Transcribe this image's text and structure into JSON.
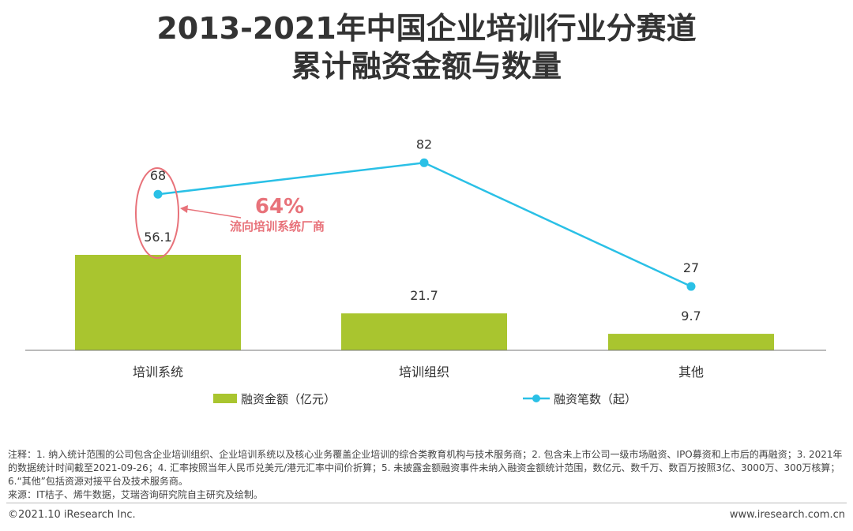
{
  "header": {
    "title_line1": "2013-2021年中国企业培训行业分赛道",
    "title_line2": "累计融资金额与数量"
  },
  "chart_data": {
    "type": "bar+line",
    "categories": [
      "培训系统",
      "培训组织",
      "其他"
    ],
    "series": [
      {
        "name": "融资金额（亿元）",
        "type": "bar",
        "values": [
          56.1,
          21.7,
          9.7
        ],
        "color": "#a9c52f"
      },
      {
        "name": "融资笔数（起）",
        "type": "line",
        "values": [
          68,
          82,
          27
        ],
        "color": "#2ac0e6"
      }
    ],
    "annotation": {
      "value": "64%",
      "text": "流向培训系统厂商",
      "color": "#e8727a",
      "target_category": "培训系统"
    },
    "legend_position": "bottom"
  },
  "notes": {
    "line1": "注释：1. 纳入统计范围的公司包含企业培训组织、企业培训系统以及核心业务覆盖企业培训的综合类教育机构与技术服务商；2. 包含未上市公司一级市场融资、IPO募资和上市后的再融资；3. 2021年的数据统计时间截至2021-09-26；4. 汇率按照当年人民币兑美元/港元汇率中间价折算；5. 未披露金额融资事件未纳入融资金额统计范围，数亿元、数千万、数百万按照3亿、3000万、300万核算；6.“其他”包括资源对接平台及技术服务商。",
    "source": "来源：IT桔子、烯牛数据，艾瑞咨询研究院自主研究及绘制。"
  },
  "footer": {
    "copyright": "©2021.10 iResearch Inc.",
    "website": "www.iresearch.com.cn"
  }
}
